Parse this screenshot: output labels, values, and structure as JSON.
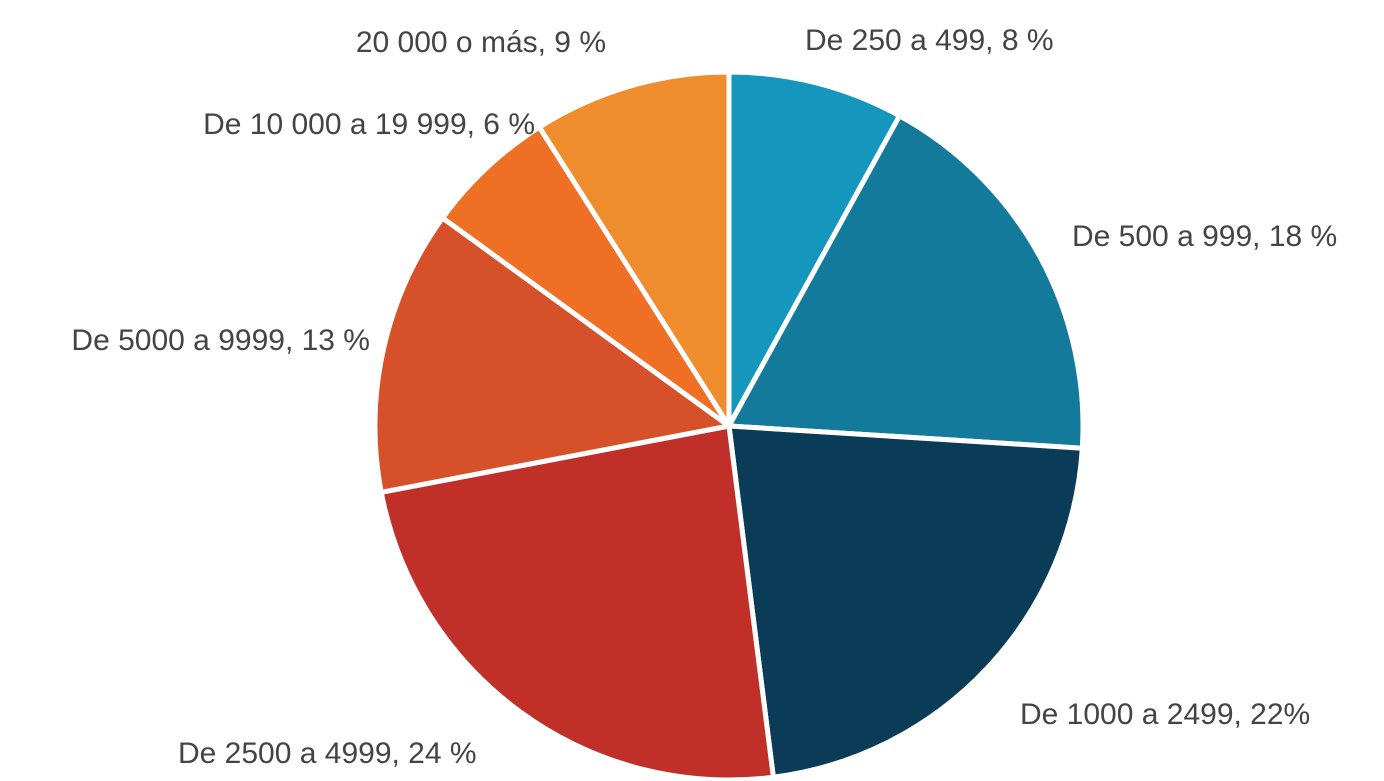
{
  "chart_data": {
    "type": "pie",
    "labels": [
      "De 250 a 499, 8 %",
      "De 500 a 999, 18 %",
      "De 1000 a 2499, 22%",
      "De 2500 a 4999, 24 %",
      "De 5000 a 9999, 13 %",
      "De 10 000 a 19 999, 6 %",
      "20 000 o más, 9 %"
    ],
    "values": [
      8,
      18,
      22,
      24,
      13,
      6,
      9
    ],
    "colors": [
      "#1596bd",
      "#137a9c",
      "#0b3c57",
      "#c03028",
      "#d65129",
      "#ef6f25",
      "#ef8c2d"
    ]
  }
}
